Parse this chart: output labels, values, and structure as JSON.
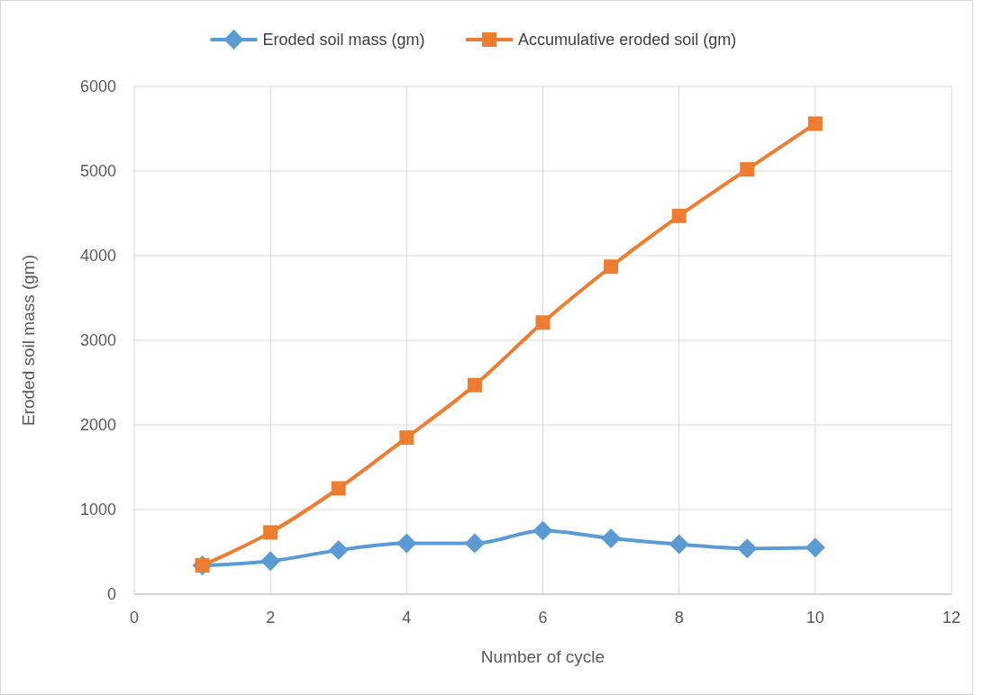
{
  "chart_data": {
    "type": "line",
    "xlabel": "Number of cycle",
    "ylabel": "Eroded soil mass (gm)",
    "x": [
      1,
      2,
      3,
      4,
      5,
      6,
      7,
      8,
      9,
      10
    ],
    "series": [
      {
        "name": "Eroded soil mass (gm)",
        "color": "#5b9bd5",
        "marker": "diamond",
        "values": [
          340,
          390,
          520,
          600,
          600,
          750,
          660,
          590,
          540,
          550
        ]
      },
      {
        "name": "Accumulative eroded soil (gm)",
        "color": "#ed7d31",
        "marker": "square",
        "values": [
          340,
          730,
          1250,
          1850,
          2470,
          3210,
          3870,
          4470,
          5020,
          5560
        ]
      }
    ],
    "xlim": [
      0,
      12
    ],
    "xticks": [
      0,
      2,
      4,
      6,
      8,
      10,
      12
    ],
    "ylim": [
      0,
      6000
    ],
    "yticks": [
      0,
      1000,
      2000,
      3000,
      4000,
      5000,
      6000
    ],
    "grid": true,
    "legend": "top"
  }
}
